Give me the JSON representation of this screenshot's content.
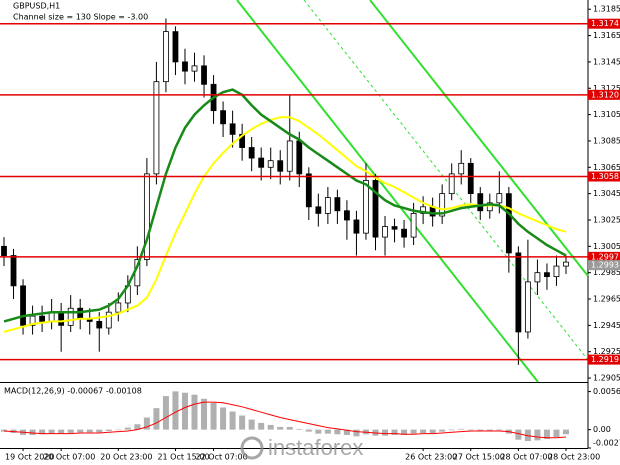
{
  "chart_data": {
    "type": "candlestick",
    "title": "GBPUSD,H1",
    "subtitle": "Channel size = 130 Slope = -3.00",
    "categories": [
      null,
      null,
      "19 Oct 2020",
      null,
      null,
      null,
      "20 Oct 07:00",
      null,
      null,
      null,
      null,
      null,
      "20 Oct 23:00",
      null,
      null,
      null,
      null,
      null,
      "21 Oct 15:00",
      null,
      null,
      null,
      "22 Oct 07:00",
      null,
      null,
      null,
      null,
      null,
      null,
      null,
      null,
      null,
      null,
      null,
      null,
      null,
      null,
      null,
      null,
      null,
      null,
      null,
      null,
      null,
      "26 Oct 23:00",
      null,
      null,
      null,
      null,
      "27 Oct 15:00",
      null,
      null,
      null,
      null,
      "28 Oct 07:00",
      null,
      null,
      null,
      null,
      "28 Oct 23:00"
    ],
    "open": [
      1.3005,
      1.2998,
      1.2975,
      1.2945,
      1.2952,
      1.2948,
      1.2955,
      1.2945,
      1.2958,
      1.295,
      1.2948,
      1.2943,
      1.2955,
      1.2962,
      1.2975,
      1.2995,
      1.306,
      1.313,
      1.3168,
      1.3145,
      1.3138,
      1.3142,
      1.3128,
      1.3108,
      1.3098,
      1.309,
      1.308,
      1.3072,
      1.3065,
      1.307,
      1.3062,
      1.3085,
      1.306,
      1.3035,
      1.303,
      1.3042,
      1.3032,
      1.3025,
      1.3015,
      1.3055,
      1.3012,
      1.302,
      1.3018,
      1.3012,
      1.303,
      1.3035,
      1.3028,
      1.3045,
      1.306,
      1.3068,
      1.3045,
      1.3032,
      1.3038,
      1.3045,
      1.3,
      1.294,
      1.2978,
      1.2985,
      1.2982,
      1.299
    ],
    "high": [
      1.3012,
      1.3003,
      1.298,
      1.296,
      1.296,
      1.2965,
      1.2962,
      1.2968,
      1.2965,
      1.2958,
      1.2955,
      1.2962,
      1.297,
      1.2983,
      1.3005,
      1.3072,
      1.3145,
      1.3178,
      1.3172,
      1.3155,
      1.3152,
      1.315,
      1.3135,
      1.3115,
      1.3108,
      1.3098,
      1.3088,
      1.308,
      1.308,
      1.3078,
      1.312,
      1.3092,
      1.3065,
      1.3045,
      1.305,
      1.3048,
      1.304,
      1.3032,
      1.3068,
      1.306,
      1.3028,
      1.3026,
      1.3025,
      1.3038,
      1.3043,
      1.3042,
      1.3052,
      1.3068,
      1.3078,
      1.3072,
      1.305,
      1.3045,
      1.3062,
      1.305,
      1.3005,
      1.301,
      1.2995,
      1.2992,
      1.2998,
      1.2998
    ],
    "low": [
      1.299,
      1.2965,
      1.2938,
      1.2938,
      1.294,
      1.2942,
      1.2925,
      1.294,
      1.2942,
      1.2938,
      1.2925,
      1.2938,
      1.2948,
      1.2955,
      1.2968,
      1.299,
      1.3052,
      1.3122,
      1.3135,
      1.3128,
      1.313,
      1.3118,
      1.3098,
      1.3088,
      1.308,
      1.307,
      1.3062,
      1.3055,
      1.3056,
      1.3052,
      1.3055,
      1.305,
      1.3025,
      1.302,
      1.3022,
      1.3022,
      1.301,
      1.2998,
      1.301,
      1.3002,
      1.2998,
      1.3008,
      1.3004,
      1.3006,
      1.3022,
      1.302,
      1.3022,
      1.304,
      1.3052,
      1.3038,
      1.3025,
      1.3026,
      1.303,
      1.2985,
      1.2915,
      1.2935,
      1.2968,
      1.2972,
      1.2975,
      1.2984
    ],
    "close": [
      1.2998,
      1.2975,
      1.2945,
      1.2952,
      1.2948,
      1.2955,
      1.2945,
      1.2958,
      1.295,
      1.2948,
      1.2943,
      1.2955,
      1.2962,
      1.2975,
      1.2995,
      1.306,
      1.313,
      1.3168,
      1.3145,
      1.3138,
      1.3142,
      1.3128,
      1.3108,
      1.3098,
      1.309,
      1.308,
      1.3072,
      1.3065,
      1.307,
      1.3062,
      1.3085,
      1.306,
      1.3035,
      1.303,
      1.3042,
      1.3032,
      1.3025,
      1.3015,
      1.3055,
      1.3012,
      1.302,
      1.3018,
      1.3012,
      1.303,
      1.3035,
      1.3028,
      1.3045,
      1.306,
      1.3068,
      1.3045,
      1.3032,
      1.3038,
      1.3045,
      1.3,
      1.294,
      1.2978,
      1.2985,
      1.2982,
      1.299,
      1.2993
    ],
    "moving_averages": [
      {
        "color": "#ffff00",
        "values": [
          1.294,
          1.2942,
          1.2944,
          1.2946,
          1.2947,
          1.2948,
          1.2948,
          1.2949,
          1.295,
          1.295,
          1.2951,
          1.2952,
          1.2954,
          1.2957,
          1.296,
          1.2966,
          1.298,
          1.2998,
          1.3015,
          1.303,
          1.3045,
          1.3058,
          1.3068,
          1.3076,
          1.3083,
          1.3089,
          1.3094,
          1.3098,
          1.3101,
          1.3103,
          1.3103,
          1.31,
          1.3095,
          1.309,
          1.3084,
          1.3078,
          1.3072,
          1.3066,
          1.3062,
          1.3057,
          1.3053,
          1.305,
          1.3046,
          1.3042,
          1.3038,
          1.3035,
          1.3033,
          1.3034,
          1.3036,
          1.3037,
          1.3036,
          1.3036,
          1.3036,
          1.3034,
          1.303,
          1.3027,
          1.3024,
          1.3021,
          1.3018,
          1.3016
        ]
      },
      {
        "color": "#178a17",
        "values": [
          1.2948,
          1.295,
          1.2952,
          1.2953,
          1.2954,
          1.2955,
          1.2955,
          1.2955,
          1.2955,
          1.2956,
          1.2957,
          1.296,
          1.2965,
          1.2975,
          1.299,
          1.301,
          1.3035,
          1.306,
          1.308,
          1.3095,
          1.3105,
          1.3112,
          1.3118,
          1.3122,
          1.3124,
          1.312,
          1.3112,
          1.3105,
          1.31,
          1.3095,
          1.309,
          1.3086,
          1.308,
          1.3075,
          1.307,
          1.3065,
          1.306,
          1.3055,
          1.3052,
          1.3046,
          1.304,
          1.3036,
          1.3034,
          1.3032,
          1.3031,
          1.303,
          1.303,
          1.3032,
          1.3034,
          1.3035,
          1.3036,
          1.3037,
          1.3036,
          1.303,
          1.3022,
          1.3016,
          1.3011,
          1.3006,
          1.3002,
          1.2998
        ]
      }
    ],
    "levels": [
      1.3174,
      {
        "value": 1.312,
        "label": "1.3120"
      },
      1.3058,
      1.2997,
      1.2919
    ],
    "level_color": "#e00000",
    "last_price": 1.2993,
    "ylim": [
      1.2902,
      1.3192
    ],
    "yticks": [
      1.3185,
      1.3165,
      1.3145,
      1.3125,
      1.3105,
      1.3085,
      1.3065,
      1.3045,
      1.3025,
      1.3005,
      1.2985,
      1.2965,
      1.2945,
      1.2925,
      1.2905
    ],
    "macd": {
      "title": "MACD(12,26,9) -0.00067 -0.00108",
      "histogram": [
        -0.0003,
        -0.0005,
        -0.0008,
        -0.0008,
        -0.0007,
        -0.0006,
        -0.0006,
        -0.0005,
        -0.0004,
        -0.0004,
        -0.0004,
        -0.0002,
        0,
        0.0003,
        0.0008,
        0.0018,
        0.0032,
        0.005,
        0.0057,
        0.0055,
        0.0052,
        0.0046,
        0.004,
        0.0033,
        0.0027,
        0.0021,
        0.0015,
        0.001,
        0.0007,
        0.0004,
        0.0004,
        0.0001,
        -0.0003,
        -0.0006,
        -0.0006,
        -0.0007,
        -0.0008,
        -0.001,
        -0.0007,
        -0.0009,
        -0.0009,
        -0.0008,
        -0.0008,
        -0.0006,
        -0.0005,
        -0.0005,
        -0.0003,
        -0.0001,
        0.0001,
        0,
        -0.0002,
        -0.0002,
        -0.0001,
        -0.0006,
        -0.0015,
        -0.0017,
        -0.0016,
        -0.0014,
        -0.0011,
        -0.0007
      ],
      "signal": [
        -0.0002,
        -0.0003,
        -0.0004,
        -0.0005,
        -0.0006,
        -0.0006,
        -0.0006,
        -0.0006,
        -0.0005,
        -0.0005,
        -0.0005,
        -0.0004,
        -0.0003,
        -0.0002,
        0,
        0.0004,
        0.001,
        0.0018,
        0.0026,
        0.0033,
        0.0038,
        0.0041,
        0.0041,
        0.004,
        0.0037,
        0.0034,
        0.003,
        0.0026,
        0.0022,
        0.0018,
        0.0015,
        0.0012,
        0.0009,
        0.0006,
        0.0003,
        0.0001,
        -0.0001,
        -0.0003,
        -0.0004,
        -0.0005,
        -0.0006,
        -0.0006,
        -0.0007,
        -0.0007,
        -0.0006,
        -0.0006,
        -0.0005,
        -0.0004,
        -0.0003,
        -0.0002,
        -0.0002,
        -0.0002,
        -0.0002,
        -0.0003,
        -0.0006,
        -0.0009,
        -0.0011,
        -0.0012,
        -0.0012,
        -0.0011
      ],
      "histogram_color": "#b0b0b0",
      "signal_color": "#ff0000",
      "ylim": [
        -0.00274,
        0.0068
      ],
      "yticks": [
        0.00567,
        {
          "value": 0,
          "label": "0.00"
        },
        -0.00274
      ]
    }
  },
  "watermark": "instaforex"
}
